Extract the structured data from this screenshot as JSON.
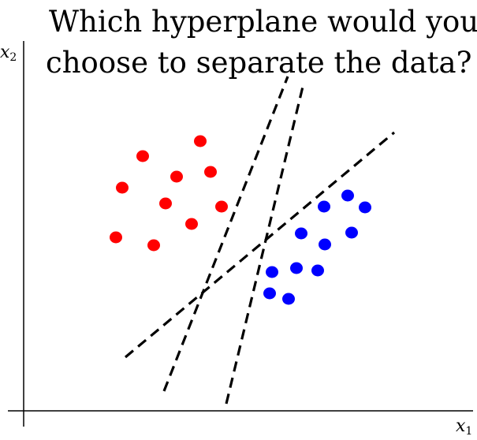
{
  "title": {
    "line1": "Which hyperplane would you",
    "line2": "choose to separate the data?"
  },
  "axes": {
    "x_label_base": "x",
    "x_label_sub": "1",
    "y_label_base": "x",
    "y_label_sub": "2"
  },
  "colors": {
    "class_a": "#ff0000",
    "class_b": "#0000ff",
    "axis": "#000000",
    "hyperplane": "#000000"
  },
  "points": {
    "class_a": [
      [
        181,
        198
      ],
      [
        254,
        179
      ],
      [
        155,
        238
      ],
      [
        224,
        224
      ],
      [
        267,
        218
      ],
      [
        210,
        258
      ],
      [
        281,
        262
      ],
      [
        243,
        284
      ],
      [
        147,
        301
      ],
      [
        195,
        311
      ]
    ],
    "class_b": [
      [
        441,
        248
      ],
      [
        411,
        262
      ],
      [
        463,
        263
      ],
      [
        382,
        296
      ],
      [
        446,
        295
      ],
      [
        412,
        310
      ],
      [
        345,
        345
      ],
      [
        376,
        340
      ],
      [
        403,
        343
      ],
      [
        342,
        372
      ],
      [
        366,
        379
      ]
    ]
  },
  "hyperplanes": [
    {
      "from": [
        208,
        496
      ],
      "to": [
        365,
        97
      ]
    },
    {
      "from": [
        287,
        512
      ],
      "to": [
        384,
        110
      ]
    },
    {
      "from": [
        159,
        453
      ],
      "to": [
        500,
        168
      ]
    }
  ]
}
